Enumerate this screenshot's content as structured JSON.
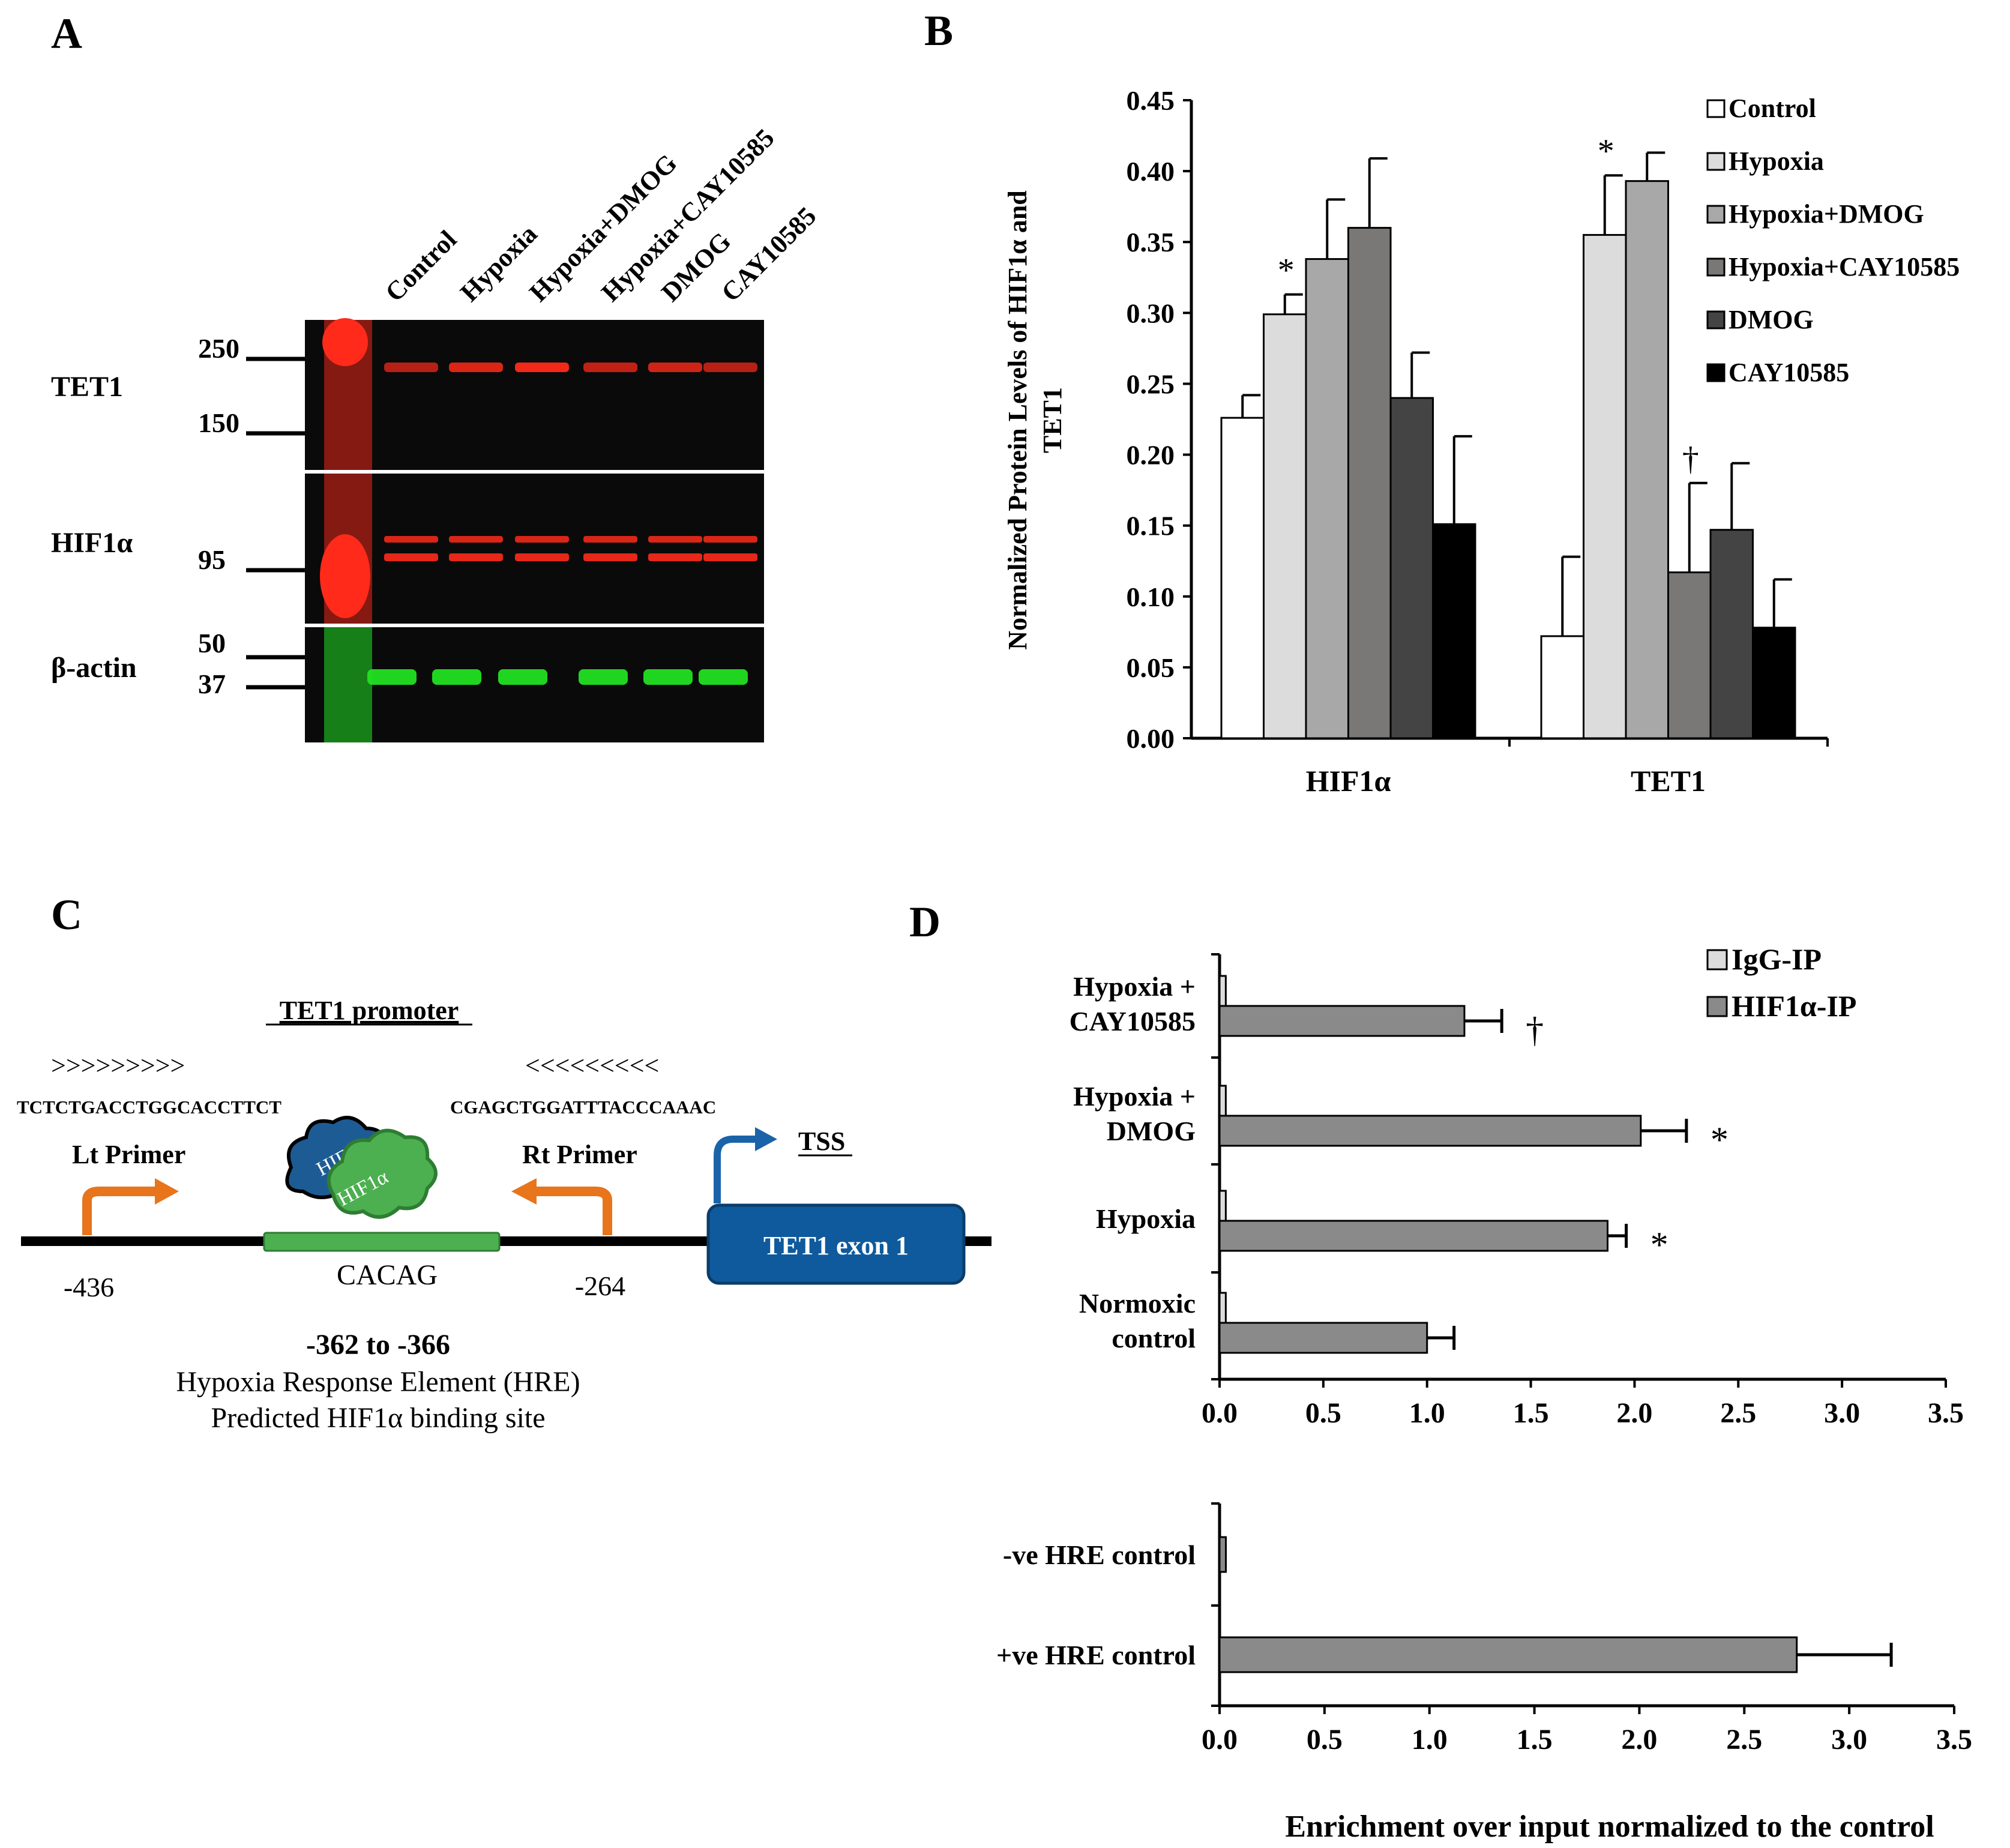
{
  "panels": {
    "A": {
      "letter": "A",
      "lane_labels": [
        "Control",
        "Hypoxia",
        "Hypoxia+DMOG",
        "Hypoxia+CAY10585",
        "DMOG",
        "CAY10585"
      ],
      "blots": [
        {
          "label": "TET1",
          "markers": [
            "250",
            "150"
          ],
          "color": "#ff2a1a"
        },
        {
          "label": "HIF1α",
          "markers": [
            "95"
          ],
          "color": "#ff2a1a"
        },
        {
          "label": "β-actin",
          "markers": [
            "50",
            "37"
          ],
          "color": "#22e022"
        }
      ]
    },
    "B": {
      "letter": "B"
    },
    "C": {
      "letter": "C",
      "promoter_title": "TET1 promoter",
      "lt_arrows": ">>>>>>>>>",
      "rt_arrows": "<<<<<<<<<",
      "lt_seq": "TCTCTGACCTGGCACCTTCT",
      "rt_seq": "CGAGCTGGATTTACCCAAAC",
      "lt_primer": "Lt Primer",
      "rt_primer": "Rt Primer",
      "tss": "TSS",
      "hif1b": "HIF1β",
      "hif1a": "HIF1α",
      "hre_seq": "CACAG",
      "pos_left": "-436",
      "pos_right": "-264",
      "exon": "TET1 exon 1",
      "range": "-362 to -366",
      "hre_line1": "Hypoxia Response Element (HRE)",
      "hre_line2": "Predicted HIF1α binding site"
    },
    "D": {
      "letter": "D"
    }
  },
  "colors": {
    "control": "#ffffff",
    "hypoxia": "#dcdcdc",
    "hypoxia_dmog": "#a8a8a8",
    "hypoxia_cay": "#7a7777",
    "dmog": "#444444",
    "cay": "#000000",
    "igg": "#dcdcdc",
    "hif1a_ip": "#8a8a8a",
    "primer_arrow": "#e8741c",
    "tss_arrow": "#1a63a8",
    "exon_box": "#0f5a9c",
    "hre_box": "#4caf50",
    "hif1b_blob": "#1d5b94",
    "hif1a_blob": "#4caf50"
  },
  "chart_data": [
    {
      "id": "B",
      "type": "bar",
      "title": "",
      "xlabel": "",
      "ylabel": "Normalized Protein Levels of HIF1α and TET1",
      "ylim": [
        0,
        0.45
      ],
      "yticks": [
        "0.00",
        "0.05",
        "0.10",
        "0.15",
        "0.20",
        "0.25",
        "0.30",
        "0.35",
        "0.40",
        "0.45"
      ],
      "categories": [
        "HIF1α",
        "TET1"
      ],
      "legend_position": "top-right",
      "series": [
        {
          "name": "Control",
          "values": [
            0.226,
            0.072
          ],
          "errors": [
            0.016,
            0.056
          ]
        },
        {
          "name": "Hypoxia",
          "values": [
            0.299,
            0.355
          ],
          "errors": [
            0.014,
            0.042
          ]
        },
        {
          "name": "Hypoxia+DMOG",
          "values": [
            0.338,
            0.393
          ],
          "errors": [
            0.042,
            0.02
          ]
        },
        {
          "name": "Hypoxia+CAY10585",
          "values": [
            0.36,
            0.117
          ],
          "errors": [
            0.049,
            0.063
          ]
        },
        {
          "name": "DMOG",
          "values": [
            0.24,
            0.147
          ],
          "errors": [
            0.032,
            0.047
          ]
        },
        {
          "name": "CAY10585",
          "values": [
            0.151,
            0.078
          ],
          "errors": [
            0.062,
            0.034
          ]
        }
      ],
      "annotations": [
        {
          "category": "HIF1α",
          "series": "Hypoxia",
          "symbol": "*"
        },
        {
          "category": "TET1",
          "series": "Hypoxia",
          "symbol": "*"
        },
        {
          "category": "TET1",
          "series": "Hypoxia+CAY10585",
          "symbol": "†"
        }
      ]
    },
    {
      "id": "D-top",
      "type": "bar",
      "orientation": "horizontal",
      "title": "",
      "xlim": [
        0,
        3.5
      ],
      "xticks": [
        "0.0",
        "0.5",
        "1.0",
        "1.5",
        "2.0",
        "2.5",
        "3.0",
        "3.5"
      ],
      "categories": [
        "Hypoxia  +\nCAY10585",
        "Hypoxia +\nDMOG",
        "Hypoxia",
        "Normoxic\ncontrol"
      ],
      "legend_position": "top-right",
      "series": [
        {
          "name": "IgG-IP",
          "values": [
            0.03,
            0.03,
            0.03,
            0.03
          ],
          "errors": [
            0,
            0,
            0,
            0
          ]
        },
        {
          "name": "HIF1α-IP",
          "values": [
            1.18,
            2.03,
            1.87,
            1.0
          ],
          "errors": [
            0.18,
            0.22,
            0.09,
            0.13
          ]
        }
      ],
      "annotations": [
        {
          "category": "Hypoxia  +\nCAY10585",
          "symbol": "†"
        },
        {
          "category": "Hypoxia +\nDMOG",
          "symbol": "*"
        },
        {
          "category": "Hypoxia",
          "symbol": "*"
        }
      ]
    },
    {
      "id": "D-bottom",
      "type": "bar",
      "orientation": "horizontal",
      "title": "",
      "xlim": [
        0,
        3.5
      ],
      "xticks": [
        "0.0",
        "0.5",
        "1.0",
        "1.5",
        "2.0",
        "2.5",
        "3.0",
        "3.5"
      ],
      "xlabel": "Enrichment over input normalized to the control",
      "categories": [
        "-ve HRE control",
        "+ve HRE control"
      ],
      "series": [
        {
          "name": "HIF1α-IP",
          "values": [
            0.03,
            2.75
          ],
          "errors": [
            0,
            0.45
          ]
        }
      ]
    }
  ]
}
